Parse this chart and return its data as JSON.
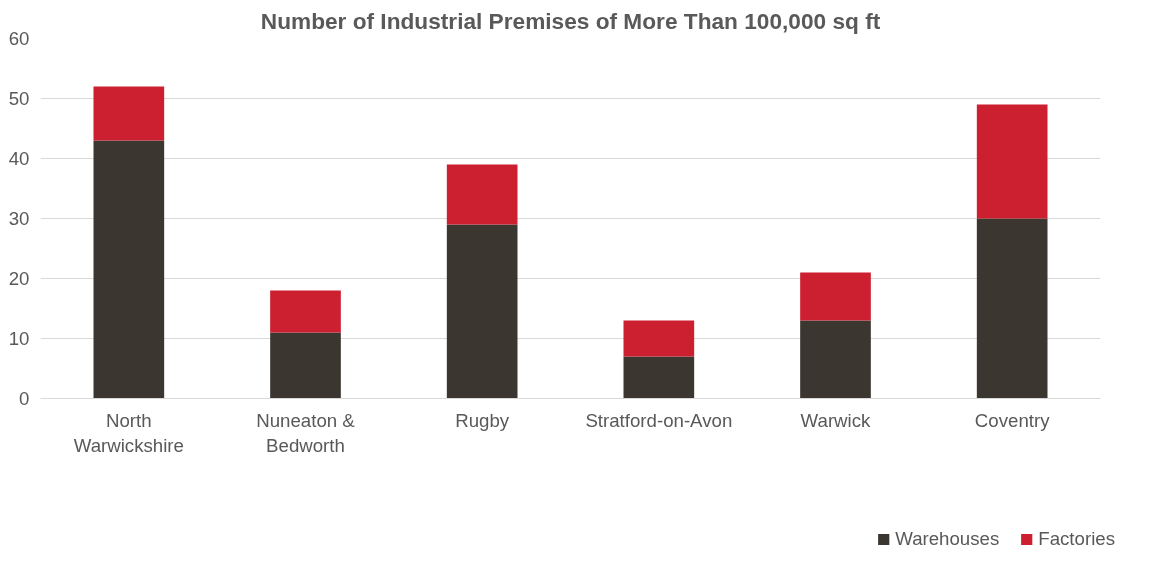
{
  "chart_data": {
    "type": "bar",
    "title": "Number of Industrial Premises of More Than 100,000 sq ft",
    "categories": [
      "North Warwickshire",
      "Nuneaton & Bedworth",
      "Rugby",
      "Stratford-on-Avon",
      "Warwick",
      "Coventry"
    ],
    "stacked": true,
    "series": [
      {
        "name": "Warehouses",
        "color": "#3c3631",
        "values": [
          43,
          11,
          29,
          7,
          13,
          30
        ]
      },
      {
        "name": "Factories",
        "color": "#cc1f2f",
        "values": [
          9,
          7,
          10,
          6,
          8,
          19
        ]
      }
    ],
    "ylim": [
      0,
      60
    ],
    "yticks": [
      0,
      10,
      20,
      30,
      40,
      50,
      60
    ],
    "grid": "y",
    "legend": "bottom"
  }
}
